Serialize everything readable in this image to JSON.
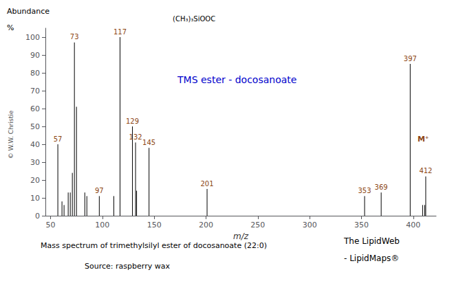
{
  "chart_data": {
    "type": "stem",
    "title": "TMS ester - docosanoate",
    "xlabel": "m/z",
    "ylabel": "Abundance",
    "x": [
      57,
      61,
      63,
      67,
      69,
      71,
      73,
      75,
      83,
      85,
      97,
      111,
      117,
      129,
      132,
      133,
      145,
      201,
      353,
      369,
      397,
      409,
      411,
      412
    ],
    "values": [
      40,
      8,
      6,
      13,
      13,
      24,
      97,
      61,
      13,
      11,
      11,
      11,
      100,
      50,
      41,
      14,
      38,
      15,
      11,
      13,
      85,
      6,
      6,
      22
    ],
    "point_labels": [
      "57",
      null,
      null,
      null,
      null,
      null,
      "73",
      null,
      null,
      null,
      "97",
      null,
      "117",
      "129",
      "132",
      null,
      "145",
      "201",
      "353",
      "369",
      "397",
      null,
      null,
      "412"
    ],
    "color": "#000000",
    "xlim": [
      45,
      422
    ],
    "ylim": [
      0,
      105
    ],
    "xticks": [
      50,
      100,
      150,
      200,
      250,
      300,
      350,
      400
    ],
    "yticks": [
      0,
      10,
      20,
      30,
      40,
      50,
      60,
      70,
      80,
      90,
      100
    ],
    "grid": false,
    "annotations": [
      "%",
      "M⁺",
      "(CH₃)₃SiOOC",
      "© W.W. Christie",
      "Mass spectrum of trimethylsilyl ester of docosanoate (22:0)",
      "Source: raspberry wax",
      "The LipidWeb",
      "- LipidMaps®"
    ]
  }
}
